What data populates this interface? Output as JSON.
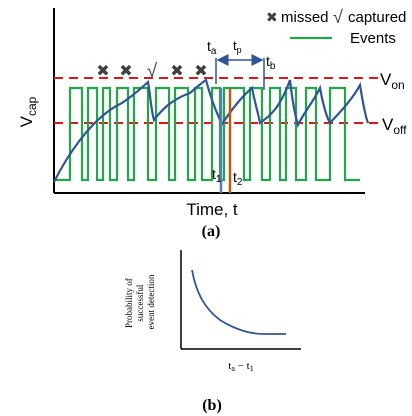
{
  "panel_a": {
    "y_label_main": "V",
    "y_label_sub": "cap",
    "x_label": "Time, t",
    "caption": "(a)",
    "legend": {
      "missed_symbol": "✖",
      "missed_label": "missed",
      "captured_symbol": "√",
      "captured_label": "captured",
      "events_label": "Events"
    },
    "markers": [
      "✖",
      "✖",
      "√",
      "✖",
      "✖"
    ],
    "v_on_main": "V",
    "v_on_sub": "on",
    "v_off_main": "V",
    "v_off_sub": "off",
    "ta_main": "t",
    "ta_sub": "a",
    "tp_main": "t",
    "tp_sub": "p",
    "tb_main": "t",
    "tb_sub": "b",
    "t1_main": "t",
    "t1_sub": "1",
    "t2_main": "t",
    "t2_sub": "2",
    "colors": {
      "vcap_curve": "#2f5597",
      "events": "#21a64a",
      "threshold": "#e0141b",
      "marker_t1": "#5b7fb5",
      "marker_t2": "#b85a14",
      "axis": "#000000"
    }
  },
  "panel_b": {
    "y_label_lines": [
      "Probability of",
      "successful",
      "event detection"
    ],
    "x_label_t": "t",
    "x_label_a": "a",
    "x_label_minus": " − t",
    "x_label_1": "1",
    "caption": "(b)",
    "curve_color": "#2f5597"
  }
}
